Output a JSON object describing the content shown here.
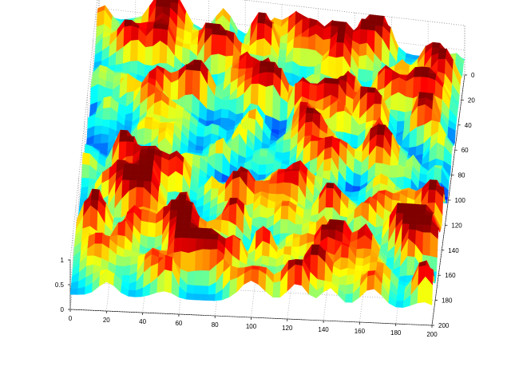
{
  "chart_data": {
    "type": "surface",
    "title": "",
    "colormap": "jet",
    "grid": true,
    "x_axis": {
      "label": "",
      "range": [
        0,
        200
      ],
      "ticks": [
        "0",
        "20",
        "40",
        "60",
        "80",
        "100",
        "120",
        "140",
        "160",
        "180",
        "200"
      ]
    },
    "y_axis": {
      "label": "",
      "range": [
        0,
        200
      ],
      "ticks": [
        "0",
        "20",
        "40",
        "60",
        "80",
        "100",
        "120",
        "140",
        "160",
        "180",
        "200"
      ]
    },
    "z_axis": {
      "label": "",
      "range": [
        0,
        1
      ],
      "ticks": [
        "0",
        "0.5",
        "1"
      ]
    },
    "surface_description": {
      "y_0_to_60": {
        "typical_z": 0.5,
        "peaks_z": 0.95
      },
      "y_60_to_110": {
        "typical_z": 0.25,
        "peaks_z": 0.6
      },
      "y_110_to_200": {
        "typical_z": 0.55,
        "peaks_z": 1.0
      }
    }
  }
}
